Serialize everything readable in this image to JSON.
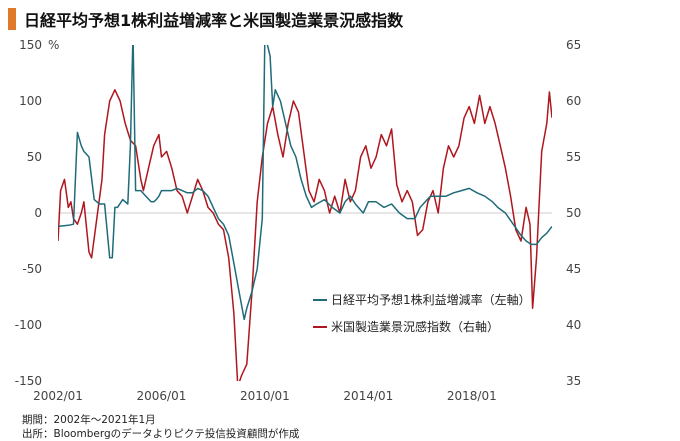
{
  "title": "日経平均予想1株利益増減率と米国製造業景況感指数",
  "footnotes": {
    "period": "期間：2002年～2021年1月",
    "source": "出所：Bloombergのデータよりピクテ投信投資顧問が作成"
  },
  "colors": {
    "accent": "#e07a2a",
    "eps": "#1f6b78",
    "ism": "#b0161e",
    "zero_line": "#cccccc"
  },
  "chart_data": {
    "type": "line",
    "grid": false,
    "legend_position": "center-right",
    "left_axis": {
      "unit": "%",
      "ylim": [
        -150,
        150
      ],
      "ticks": [
        150,
        100,
        50,
        0,
        -50,
        -100,
        -150
      ]
    },
    "right_axis": {
      "ylim": [
        35,
        65
      ],
      "ticks": [
        65,
        60,
        55,
        50,
        45,
        40,
        35
      ]
    },
    "x_axis": {
      "xlim": [
        2002.0,
        2021.1
      ],
      "ticks": [
        2002,
        2006,
        2010,
        2014,
        2018
      ],
      "tick_labels": [
        "2002/01",
        "2006/01",
        "2010/01",
        "2014/01",
        "2018/01"
      ]
    },
    "series": [
      {
        "name": "日経平均予想1株利益増減率（左軸）",
        "axis": "left",
        "x": [
          2002.0,
          2002.4,
          2002.6,
          2002.75,
          2002.9,
          2003.0,
          2003.2,
          2003.4,
          2003.6,
          2003.8,
          2004.0,
          2004.1,
          2004.2,
          2004.3,
          2004.5,
          2004.7,
          2004.8,
          2004.9,
          2005.0,
          2005.2,
          2005.4,
          2005.6,
          2005.7,
          2005.8,
          2005.9,
          2006.0,
          2006.2,
          2006.4,
          2006.6,
          2006.8,
          2007.0,
          2007.2,
          2007.4,
          2007.6,
          2007.8,
          2008.0,
          2008.2,
          2008.4,
          2008.6,
          2008.8,
          2009.0,
          2009.2,
          2009.3,
          2009.5,
          2009.7,
          2009.9,
          2010.0,
          2010.2,
          2010.3,
          2010.4,
          2010.6,
          2010.8,
          2011.0,
          2011.2,
          2011.4,
          2011.6,
          2011.8,
          2012.0,
          2012.3,
          2012.6,
          2012.9,
          2013.1,
          2013.3,
          2013.5,
          2013.8,
          2014.0,
          2014.3,
          2014.6,
          2014.9,
          2015.2,
          2015.5,
          2015.8,
          2016.0,
          2016.2,
          2016.4,
          2016.6,
          2016.8,
          2017.0,
          2017.3,
          2017.6,
          2017.9,
          2018.2,
          2018.5,
          2018.8,
          2019.0,
          2019.3,
          2019.6,
          2019.9,
          2020.1,
          2020.3,
          2020.5,
          2020.7,
          2020.9,
          2021.1
        ],
        "values": [
          -12,
          -11,
          -10,
          72,
          60,
          55,
          50,
          12,
          8,
          8,
          -40,
          -40,
          5,
          5,
          12,
          8,
          60,
          160,
          20,
          20,
          15,
          10,
          10,
          12,
          15,
          20,
          20,
          20,
          22,
          20,
          18,
          18,
          22,
          20,
          15,
          5,
          -5,
          -10,
          -20,
          -45,
          -70,
          -95,
          -85,
          -70,
          -50,
          -5,
          160,
          140,
          95,
          110,
          100,
          80,
          60,
          50,
          30,
          15,
          5,
          8,
          12,
          5,
          0,
          10,
          15,
          8,
          0,
          10,
          10,
          5,
          8,
          0,
          -5,
          -5,
          5,
          10,
          15,
          15,
          15,
          15,
          18,
          20,
          22,
          18,
          15,
          10,
          5,
          0,
          -10,
          -20,
          -25,
          -28,
          -28,
          -22,
          -18,
          -12
        ]
      },
      {
        "name": "米国製造業景況感指数（右軸）",
        "axis": "right",
        "x": [
          2002.0,
          2002.1,
          2002.25,
          2002.4,
          2002.5,
          2002.6,
          2002.75,
          2002.9,
          2003.0,
          2003.2,
          2003.3,
          2003.5,
          2003.7,
          2003.8,
          2004.0,
          2004.2,
          2004.4,
          2004.6,
          2004.8,
          2005.0,
          2005.2,
          2005.3,
          2005.5,
          2005.7,
          2005.9,
          2006.0,
          2006.2,
          2006.4,
          2006.6,
          2006.8,
          2007.0,
          2007.2,
          2007.4,
          2007.6,
          2007.8,
          2008.0,
          2008.2,
          2008.4,
          2008.6,
          2008.8,
          2008.95,
          2009.1,
          2009.3,
          2009.5,
          2009.7,
          2009.9,
          2010.1,
          2010.3,
          2010.5,
          2010.7,
          2010.9,
          2011.1,
          2011.3,
          2011.5,
          2011.7,
          2011.9,
          2012.1,
          2012.3,
          2012.5,
          2012.7,
          2012.9,
          2013.1,
          2013.3,
          2013.5,
          2013.7,
          2013.9,
          2014.1,
          2014.3,
          2014.5,
          2014.7,
          2014.9,
          2015.1,
          2015.3,
          2015.5,
          2015.7,
          2015.9,
          2016.1,
          2016.3,
          2016.5,
          2016.7,
          2016.9,
          2017.1,
          2017.3,
          2017.5,
          2017.7,
          2017.9,
          2018.1,
          2018.3,
          2018.5,
          2018.7,
          2018.9,
          2019.1,
          2019.3,
          2019.5,
          2019.7,
          2019.9,
          2020.1,
          2020.25,
          2020.35,
          2020.5,
          2020.7,
          2020.9,
          2021.0,
          2021.1
        ],
        "values": [
          47.5,
          52,
          53,
          50.5,
          51,
          49.5,
          49,
          50,
          51,
          46.5,
          46,
          49.5,
          53,
          57,
          60,
          61,
          60,
          58,
          56.5,
          56,
          53,
          52,
          54,
          56,
          57,
          55,
          55.5,
          54,
          52,
          51.5,
          50,
          51.5,
          53,
          52,
          50.5,
          50,
          49,
          48.5,
          46,
          41,
          34.5,
          35.5,
          36.5,
          43,
          51,
          55,
          58,
          59.5,
          57,
          55,
          58,
          60,
          59,
          55.5,
          52,
          51,
          53,
          52,
          50,
          51.5,
          50,
          53,
          51,
          52,
          55,
          56,
          54,
          55,
          57,
          56,
          57.5,
          52.5,
          51,
          52,
          51,
          48,
          48.5,
          51,
          52,
          50,
          54,
          56,
          55,
          56,
          58.5,
          59.5,
          58,
          60.5,
          58,
          59.5,
          58,
          56,
          54,
          51.5,
          48.5,
          47.5,
          50.5,
          49,
          41.5,
          46,
          55.5,
          58,
          60.8,
          58.5
        ]
      }
    ]
  }
}
